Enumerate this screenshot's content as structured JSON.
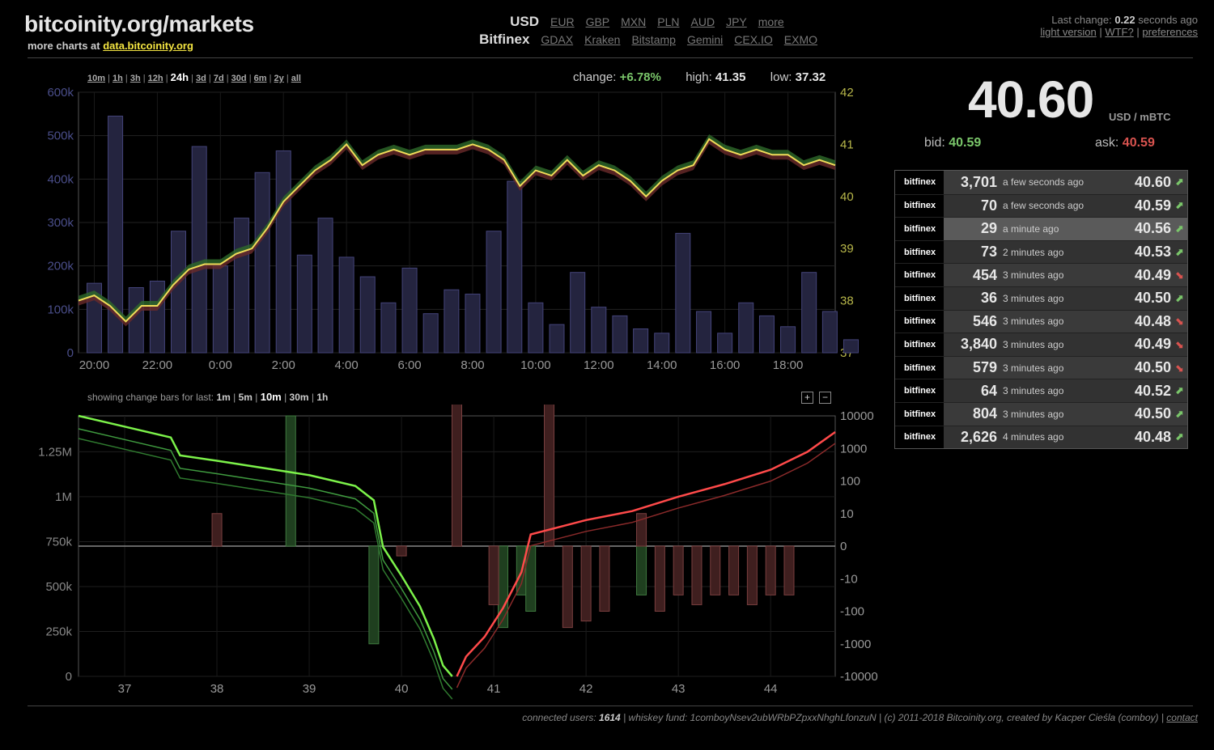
{
  "header": {
    "brand": "bitcoinity.org/markets",
    "more_charts_prefix": "more charts at",
    "more_charts_link": "data.bitcoinity.org",
    "currency_active": "USD",
    "currencies": [
      "EUR",
      "GBP",
      "MXN",
      "PLN",
      "AUD",
      "JPY",
      "more"
    ],
    "exchange_active": "Bitfinex",
    "exchanges": [
      "GDAX",
      "Kraken",
      "Bitstamp",
      "Gemini",
      "CEX.IO",
      "EXMO"
    ],
    "last_change_label": "Last change:",
    "last_change_value": "0.22",
    "last_change_suffix": "seconds ago",
    "links": [
      "light version",
      "WTF?",
      "preferences"
    ]
  },
  "range_selector": {
    "items": [
      "10m",
      "1h",
      "3h",
      "12h",
      "24h",
      "3d",
      "7d",
      "30d",
      "6m",
      "2y",
      "all"
    ],
    "active": "24h"
  },
  "stats": {
    "change_label": "change:",
    "change_value": "+6.78%",
    "high_label": "high:",
    "high_value": "41.35",
    "low_label": "low:",
    "low_value": "37.32"
  },
  "change_bars": {
    "label": "showing change bars for last:",
    "items": [
      "1m",
      "5m",
      "10m",
      "30m",
      "1h"
    ],
    "active": "10m",
    "zoom_in": "+",
    "zoom_out": "−"
  },
  "ticker": {
    "price": "40.60",
    "unit": "USD / mBTC",
    "bid_label": "bid:",
    "bid_value": "40.59",
    "ask_label": "ask:",
    "ask_value": "40.59"
  },
  "trades": [
    {
      "exchange": "bitfinex",
      "amount": "3,701",
      "time": "a few seconds ago",
      "price": "40.60",
      "dir": "up"
    },
    {
      "exchange": "bitfinex",
      "amount": "70",
      "time": "a few seconds ago",
      "price": "40.59",
      "dir": "up"
    },
    {
      "exchange": "bitfinex",
      "amount": "29",
      "time": "a minute ago",
      "price": "40.56",
      "dir": "up"
    },
    {
      "exchange": "bitfinex",
      "amount": "73",
      "time": "2 minutes ago",
      "price": "40.53",
      "dir": "up"
    },
    {
      "exchange": "bitfinex",
      "amount": "454",
      "time": "3 minutes ago",
      "price": "40.49",
      "dir": "down"
    },
    {
      "exchange": "bitfinex",
      "amount": "36",
      "time": "3 minutes ago",
      "price": "40.50",
      "dir": "up"
    },
    {
      "exchange": "bitfinex",
      "amount": "546",
      "time": "3 minutes ago",
      "price": "40.48",
      "dir": "down"
    },
    {
      "exchange": "bitfinex",
      "amount": "3,840",
      "time": "3 minutes ago",
      "price": "40.49",
      "dir": "down"
    },
    {
      "exchange": "bitfinex",
      "amount": "579",
      "time": "3 minutes ago",
      "price": "40.50",
      "dir": "down"
    },
    {
      "exchange": "bitfinex",
      "amount": "64",
      "time": "3 minutes ago",
      "price": "40.52",
      "dir": "up"
    },
    {
      "exchange": "bitfinex",
      "amount": "804",
      "time": "3 minutes ago",
      "price": "40.50",
      "dir": "up"
    },
    {
      "exchange": "bitfinex",
      "amount": "2,626",
      "time": "4 minutes ago",
      "price": "40.48",
      "dir": "up"
    }
  ],
  "footer": {
    "users_label": "connected users:",
    "users_value": "1614",
    "whiskey": "| whiskey fund: 1comboyNsev2ubWRbPZpxxNhghLfonzuN | (c) 2011-2018 Bitcoinity.org, created by Kacper Cieśla (comboy) |",
    "contact": "contact"
  },
  "colors": {
    "up": "#7ac66a",
    "down": "#d9534f",
    "price_line": "#f0dc5a",
    "volume_bar": "#2a2a4a"
  },
  "chart_data": [
    {
      "type": "bar+line",
      "name": "price-volume-24h",
      "x_ticks": [
        "20:00",
        "22:00",
        "0:00",
        "2:00",
        "4:00",
        "6:00",
        "8:00",
        "10:00",
        "12:00",
        "14:00",
        "16:00",
        "18:00"
      ],
      "y_left_ticks": [
        "0",
        "100k",
        "200k",
        "300k",
        "400k",
        "500k",
        "600k"
      ],
      "y_left_lim": [
        0,
        600000
      ],
      "y_right_ticks": [
        "37",
        "38",
        "39",
        "40",
        "41",
        "42"
      ],
      "y_right_lim": [
        37,
        42
      ],
      "x_hours": [
        19.5,
        43.5
      ],
      "volume": [
        [
          20,
          160000
        ],
        [
          20.67,
          545000
        ],
        [
          21.33,
          150000
        ],
        [
          22,
          165000
        ],
        [
          22.67,
          280000
        ],
        [
          23.33,
          475000
        ],
        [
          24,
          200000
        ],
        [
          24.67,
          310000
        ],
        [
          25.33,
          415000
        ],
        [
          26,
          465000
        ],
        [
          26.67,
          225000
        ],
        [
          27.33,
          310000
        ],
        [
          28,
          220000
        ],
        [
          28.67,
          175000
        ],
        [
          29.33,
          115000
        ],
        [
          30,
          195000
        ],
        [
          30.67,
          90000
        ],
        [
          31.33,
          145000
        ],
        [
          32,
          135000
        ],
        [
          32.67,
          280000
        ],
        [
          33.33,
          395000
        ],
        [
          34,
          115000
        ],
        [
          34.67,
          65000
        ],
        [
          35.33,
          185000
        ],
        [
          36,
          105000
        ],
        [
          36.67,
          85000
        ],
        [
          37.33,
          55000
        ],
        [
          38,
          45000
        ],
        [
          38.67,
          275000
        ],
        [
          39.33,
          95000
        ],
        [
          40,
          45000
        ],
        [
          40.67,
          115000
        ],
        [
          41.33,
          85000
        ],
        [
          42,
          60000
        ],
        [
          42.67,
          185000
        ],
        [
          43.33,
          95000
        ],
        [
          44,
          30000
        ]
      ],
      "price": [
        [
          19.5,
          38.0
        ],
        [
          20,
          38.1
        ],
        [
          20.5,
          37.9
        ],
        [
          21,
          37.6
        ],
        [
          21.5,
          37.9
        ],
        [
          22,
          37.9
        ],
        [
          22.5,
          38.3
        ],
        [
          23,
          38.6
        ],
        [
          23.5,
          38.7
        ],
        [
          24,
          38.7
        ],
        [
          24.5,
          38.9
        ],
        [
          25,
          39.0
        ],
        [
          25.5,
          39.4
        ],
        [
          26,
          39.9
        ],
        [
          26.5,
          40.2
        ],
        [
          27,
          40.5
        ],
        [
          27.5,
          40.7
        ],
        [
          28,
          41.0
        ],
        [
          28.5,
          40.6
        ],
        [
          29,
          40.8
        ],
        [
          29.5,
          40.9
        ],
        [
          30,
          40.8
        ],
        [
          30.5,
          40.9
        ],
        [
          31,
          40.9
        ],
        [
          31.5,
          40.9
        ],
        [
          32,
          41.0
        ],
        [
          32.5,
          40.9
        ],
        [
          33,
          40.7
        ],
        [
          33.5,
          40.2
        ],
        [
          34,
          40.5
        ],
        [
          34.5,
          40.4
        ],
        [
          35,
          40.7
        ],
        [
          35.5,
          40.4
        ],
        [
          36,
          40.6
        ],
        [
          36.5,
          40.5
        ],
        [
          37,
          40.3
        ],
        [
          37.5,
          40.0
        ],
        [
          38,
          40.3
        ],
        [
          38.5,
          40.5
        ],
        [
          39,
          40.6
        ],
        [
          39.5,
          41.1
        ],
        [
          40,
          40.9
        ],
        [
          40.5,
          40.8
        ],
        [
          41,
          40.9
        ],
        [
          41.5,
          40.8
        ],
        [
          42,
          40.8
        ],
        [
          42.5,
          40.6
        ],
        [
          43,
          40.7
        ],
        [
          43.5,
          40.6
        ]
      ]
    },
    {
      "type": "depth+bar",
      "name": "order-book-depth",
      "x_ticks": [
        "37",
        "38",
        "39",
        "40",
        "41",
        "42",
        "43",
        "44"
      ],
      "x_lim": [
        36.5,
        44.7
      ],
      "y_left_ticks": [
        "0",
        "250k",
        "500k",
        "750k",
        "1M",
        "1.25M"
      ],
      "y_left_lim": [
        0,
        1450000
      ],
      "y_right_ticks": [
        "-10000",
        "-1000",
        "-100",
        "-10",
        "0",
        "10",
        "100",
        "1000",
        "10000"
      ],
      "bids": [
        [
          36.5,
          1450000
        ],
        [
          37.0,
          1390000
        ],
        [
          37.5,
          1330000
        ],
        [
          37.6,
          1230000
        ],
        [
          38.0,
          1200000
        ],
        [
          38.5,
          1160000
        ],
        [
          39.0,
          1120000
        ],
        [
          39.5,
          1060000
        ],
        [
          39.7,
          980000
        ],
        [
          39.8,
          720000
        ],
        [
          40.0,
          560000
        ],
        [
          40.2,
          390000
        ],
        [
          40.35,
          210000
        ],
        [
          40.45,
          60000
        ],
        [
          40.55,
          0
        ]
      ],
      "asks": [
        [
          40.6,
          0
        ],
        [
          40.7,
          110000
        ],
        [
          40.9,
          220000
        ],
        [
          41.1,
          380000
        ],
        [
          41.3,
          580000
        ],
        [
          41.4,
          790000
        ],
        [
          41.7,
          830000
        ],
        [
          42.0,
          870000
        ],
        [
          42.5,
          920000
        ],
        [
          43.0,
          1000000
        ],
        [
          43.5,
          1070000
        ],
        [
          44.0,
          1150000
        ],
        [
          44.4,
          1250000
        ],
        [
          44.7,
          1360000
        ]
      ],
      "change_bars_buy": [
        [
          38.8,
          4
        ],
        [
          39.7,
          -3
        ],
        [
          40.6,
          5
        ],
        [
          41.1,
          -2.5
        ],
        [
          41.3,
          -1.5
        ],
        [
          41.4,
          -2
        ],
        [
          42.6,
          -1.5
        ]
      ],
      "change_bars_sell": [
        [
          38.0,
          1
        ],
        [
          40.0,
          -0.3
        ],
        [
          40.6,
          7
        ],
        [
          41.0,
          -1.8
        ],
        [
          41.6,
          5.5
        ],
        [
          41.8,
          -2.5
        ],
        [
          42.0,
          -2.3
        ],
        [
          42.2,
          -2
        ],
        [
          42.6,
          1
        ],
        [
          42.8,
          -2
        ],
        [
          43.0,
          -1.5
        ],
        [
          43.2,
          -1.8
        ],
        [
          43.4,
          -1.5
        ],
        [
          43.6,
          -1.5
        ],
        [
          43.8,
          -1.8
        ],
        [
          44.0,
          -1.5
        ],
        [
          44.2,
          -1.5
        ]
      ]
    }
  ],
  "footer_rule": true
}
